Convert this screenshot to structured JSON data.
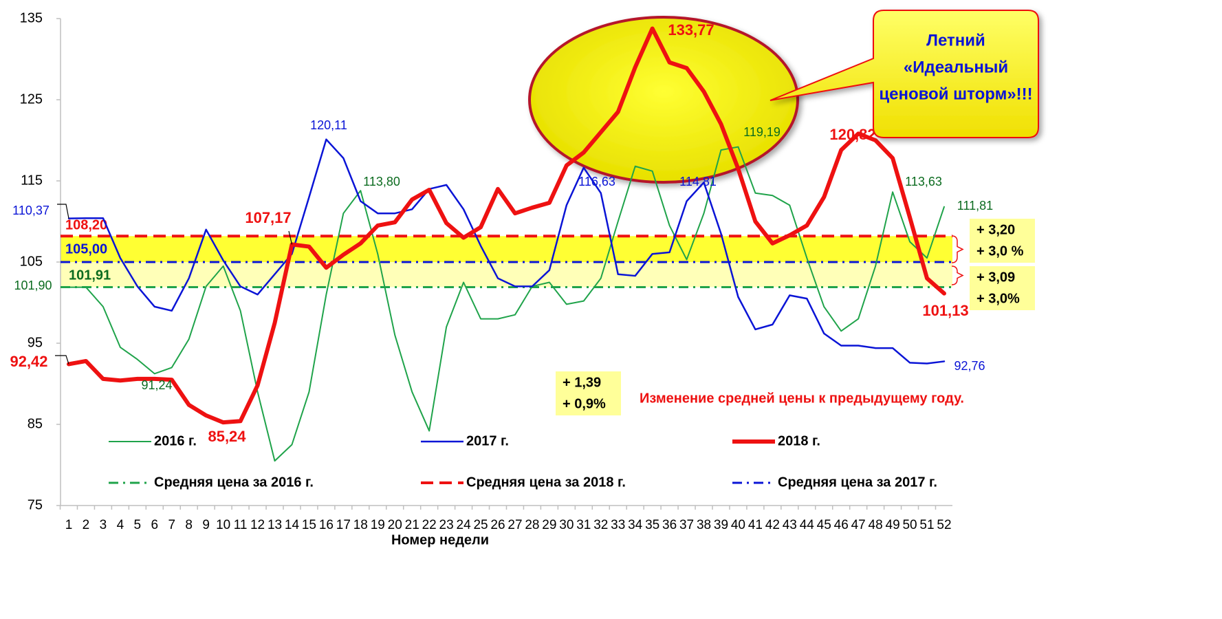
{
  "chart_data": {
    "type": "line",
    "x_label": "Номер недели",
    "categories": [
      1,
      2,
      3,
      4,
      5,
      6,
      7,
      8,
      9,
      10,
      11,
      12,
      13,
      14,
      15,
      16,
      17,
      18,
      19,
      20,
      21,
      22,
      23,
      24,
      25,
      26,
      27,
      28,
      29,
      30,
      31,
      32,
      33,
      34,
      35,
      36,
      37,
      38,
      39,
      40,
      41,
      42,
      43,
      44,
      45,
      46,
      47,
      48,
      49,
      50,
      51,
      52
    ],
    "ylim": [
      75,
      135
    ],
    "yticks": [
      75,
      85,
      95,
      105,
      115,
      125,
      135
    ],
    "grid": false,
    "series": [
      {
        "name": "2016 г.",
        "color": "#1fa34a",
        "width": 2,
        "values": [
          101.9,
          101.9,
          99.5,
          94.5,
          93,
          91.24,
          92,
          95.5,
          102,
          104.5,
          99,
          89,
          80.5,
          82.5,
          89,
          101,
          111,
          113.8,
          106,
          96,
          89,
          84.2,
          97,
          102.5,
          98,
          98,
          98.5,
          102,
          102.5,
          99.8,
          100.2,
          103,
          110,
          116.8,
          116.2,
          109.5,
          105.3,
          111,
          118.8,
          119.19,
          113.5,
          113.2,
          112,
          105.5,
          99.5,
          96.5,
          98,
          104.5,
          113.63,
          107.5,
          105.5,
          111.81
        ],
        "value_labels": [
          "101,90",
          null,
          null,
          null,
          null,
          "91,24",
          null,
          null,
          null,
          null,
          null,
          null,
          null,
          null,
          null,
          null,
          null,
          "113,80",
          null,
          null,
          null,
          null,
          null,
          null,
          null,
          null,
          null,
          null,
          null,
          null,
          null,
          null,
          null,
          null,
          null,
          null,
          null,
          null,
          null,
          "119,19",
          null,
          null,
          null,
          null,
          null,
          null,
          null,
          null,
          "113,63",
          null,
          null,
          "111,81"
        ]
      },
      {
        "name": "2017 г.",
        "color": "#0a14d6",
        "width": 2.5,
        "values": [
          110.37,
          110.4,
          110.4,
          105.5,
          102,
          99.5,
          99,
          103,
          109,
          105.2,
          102,
          101,
          103.5,
          106,
          113,
          120.11,
          117.8,
          112.5,
          111,
          111,
          111.5,
          114,
          114.5,
          111.5,
          107,
          103,
          102,
          102,
          104,
          112,
          116.63,
          113.5,
          103.5,
          103.3,
          106,
          106.2,
          112.5,
          114.81,
          108.5,
          100.7,
          96.7,
          97.3,
          100.9,
          100.5,
          96.2,
          94.7,
          94.7,
          94.4,
          94.4,
          92.6,
          92.5,
          92.76
        ],
        "value_labels": [
          "110,37",
          null,
          null,
          null,
          null,
          null,
          null,
          null,
          null,
          null,
          null,
          null,
          null,
          null,
          null,
          "120,11",
          null,
          null,
          null,
          null,
          null,
          null,
          null,
          null,
          null,
          null,
          null,
          null,
          null,
          null,
          "116,63",
          null,
          null,
          null,
          null,
          null,
          null,
          "114,81",
          null,
          null,
          null,
          null,
          null,
          null,
          null,
          null,
          null,
          null,
          null,
          null,
          null,
          "92,76"
        ]
      },
      {
        "name": "2018 г.",
        "color": "#ee1111",
        "width": 6,
        "values": [
          92.42,
          92.8,
          90.6,
          90.4,
          90.6,
          90.6,
          90.5,
          87.4,
          86.1,
          85.24,
          85.4,
          89.8,
          97.5,
          107.17,
          106.9,
          104.3,
          105.9,
          107.3,
          109.5,
          109.9,
          112.7,
          113.9,
          109.8,
          108,
          109.3,
          114,
          111,
          111.7,
          112.3,
          116.9,
          118.5,
          121,
          123.5,
          129,
          133.77,
          129.6,
          128.9,
          126,
          122,
          116.5,
          110,
          107.3,
          108.3,
          109.5,
          113,
          118.8,
          120.82,
          120,
          117.8,
          110.5,
          103,
          101.13
        ],
        "value_labels": [
          "92,42",
          null,
          null,
          null,
          null,
          null,
          null,
          null,
          null,
          "85,24",
          null,
          null,
          null,
          "107,17",
          null,
          null,
          null,
          null,
          null,
          null,
          null,
          null,
          null,
          null,
          null,
          null,
          null,
          null,
          null,
          null,
          null,
          null,
          null,
          null,
          "133,77",
          null,
          null,
          null,
          null,
          null,
          null,
          null,
          null,
          null,
          null,
          null,
          "120,82",
          null,
          null,
          null,
          null,
          "101,13"
        ]
      }
    ],
    "reference_lines": [
      {
        "name": "Средняя цена за 2016 г.",
        "value": 101.91,
        "label": "101,91",
        "color": "#1fa34a",
        "style": "dashdot"
      },
      {
        "name": "Средняя цена за 2018 г.",
        "value": 108.2,
        "label": "108,20",
        "color": "#ee1111",
        "style": "dashed"
      },
      {
        "name": "Средняя цена за 2017 г.",
        "value": 105,
        "label": "105,00",
        "color": "#0a14d6",
        "style": "dashdot"
      }
    ],
    "annotations": [
      {
        "lines": [
          "+ 3,20",
          "+ 3,0 %"
        ]
      },
      {
        "lines": [
          "+ 3,09",
          "+ 3,0%"
        ]
      },
      {
        "lines": [
          "+ 1,39",
          "+ 0,9%"
        ]
      }
    ],
    "note": "Изменение средней цены к предыдущему году.",
    "callout": {
      "lines": [
        "Летний",
        "«Идеальный",
        "ценовой шторм»!!!"
      ]
    }
  }
}
